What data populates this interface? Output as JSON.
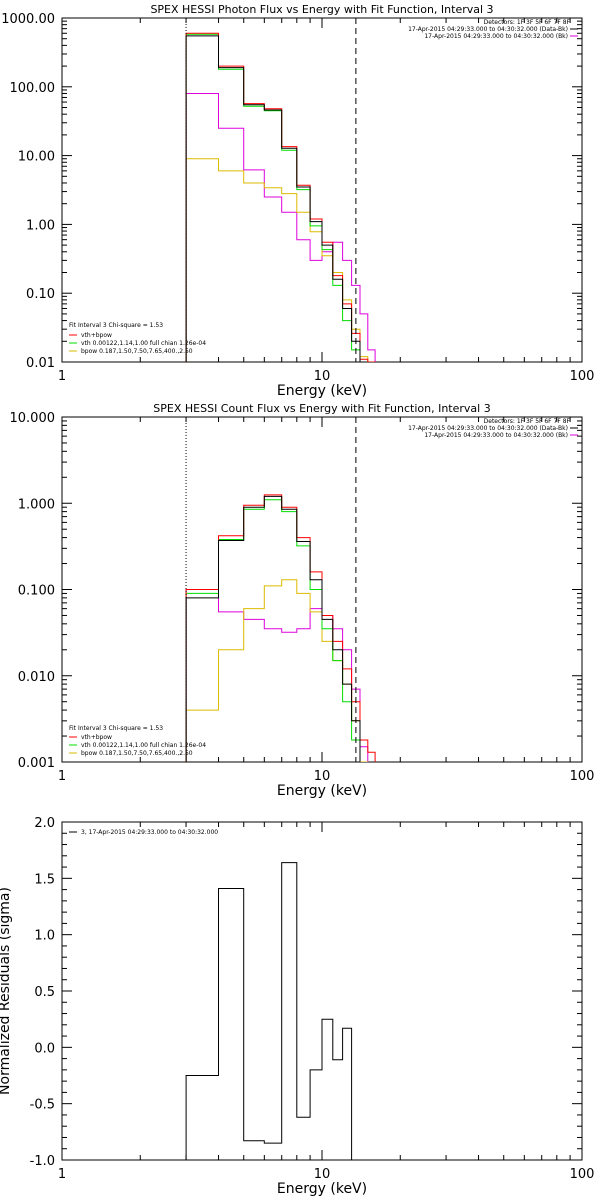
{
  "colors": {
    "total": "#000000",
    "data": "#ff0000",
    "vth": "#00dd00",
    "bpow": "#ddbb00",
    "bkg": "#dd00dd",
    "axis": "#000000"
  },
  "chart_data": [
    {
      "type": "line",
      "step": true,
      "title": "SPEX HESSI Photon Flux vs Energy with Fit Function, Interval 3",
      "xlabel": "Energy (keV)",
      "ylabel": "",
      "xscale": "log",
      "yscale": "log",
      "xlim": [
        1,
        100
      ],
      "ylim": [
        0.01,
        1000
      ],
      "xtick_labels": [
        "1",
        "10",
        "100"
      ],
      "ytick_labels": [
        "0.01",
        "0.10",
        "1.00",
        "10.00",
        "100.00",
        "1000.00"
      ],
      "vlines": [
        {
          "x": 3,
          "style": "dotted",
          "label": ""
        },
        {
          "x": 13.5,
          "style": "dashed",
          "label": ""
        }
      ],
      "header_lines": [
        "Detectors: 1F 3F 5F 6F 7F 8F",
        "17-Apr-2015 04:29:33.000 to 04:30:32.000 (Data-Bk)",
        "17-Apr-2015 04:29:33.000 to 04:30:32.000 (Bk)"
      ],
      "legend": [
        "Fit Interval 3   Chi-square = 1.53",
        "vth+bpow",
        "vth 0.00122,1.14,1.00  full chian 1.26e-04",
        "bpow 0.187,1.50,7.50,7.65,400.,2.50"
      ],
      "x_edges": [
        3,
        4,
        5,
        6,
        7,
        8,
        9,
        10,
        11,
        12,
        13,
        14,
        15,
        16
      ],
      "series": [
        {
          "name": "Data-Bk",
          "color_key": "data",
          "values": [
            600,
            200,
            57,
            48,
            13.5,
            3.7,
            1.2,
            0.55,
            0.18,
            0.07,
            0.026,
            0.011,
            0.01
          ]
        },
        {
          "name": "vth+bpow",
          "color_key": "total",
          "values": [
            550,
            190,
            55,
            46,
            12.8,
            3.5,
            1.1,
            0.5,
            0.16,
            0.06,
            0.02,
            null,
            null
          ]
        },
        {
          "name": "vth",
          "color_key": "vth",
          "values": [
            580,
            180,
            52,
            45,
            12,
            3.2,
            0.95,
            0.43,
            0.13,
            0.04,
            0.015,
            null,
            null
          ]
        },
        {
          "name": "bpow",
          "color_key": "bpow",
          "values": [
            9,
            6,
            4,
            3.4,
            2.8,
            1.5,
            0.78,
            0.35,
            0.2,
            0.08,
            0.03,
            0.012,
            null
          ]
        },
        {
          "name": "Bk",
          "color_key": "bkg",
          "values": [
            80,
            25,
            6.2,
            2.5,
            1.5,
            0.6,
            0.3,
            0.4,
            0.55,
            0.3,
            0.13,
            0.05,
            0.015
          ]
        }
      ]
    },
    {
      "type": "line",
      "step": true,
      "title": "SPEX HESSI Count Flux vs Energy with Fit Function, Interval 3",
      "xlabel": "Energy (keV)",
      "ylabel": "",
      "xscale": "log",
      "yscale": "log",
      "xlim": [
        1,
        100
      ],
      "ylim": [
        0.001,
        10
      ],
      "xtick_labels": [
        "1",
        "10",
        "100"
      ],
      "ytick_labels": [
        "0.001",
        "0.010",
        "0.100",
        "1.000",
        "10.000"
      ],
      "vlines": [
        {
          "x": 3,
          "style": "dotted",
          "label": ""
        },
        {
          "x": 13.5,
          "style": "dashed",
          "label": ""
        }
      ],
      "header_lines": [
        "Detectors: 1F 3F 5F 6F 7F 8F",
        "17-Apr-2015 04:29:33.000 to 04:30:32.000 (Data-Bk)",
        "17-Apr-2015 04:29:33.000 to 04:30:32.000 (Bk)"
      ],
      "legend": [
        "Fit Interval 3   Chi-square = 1.53",
        "vth+bpow",
        "vth 0.00122,1.14,1.00  full chian 1.26e-04",
        "bpow 0.187,1.50,7.50,7.65,400.,2.50"
      ],
      "x_edges": [
        3,
        4,
        5,
        6,
        7,
        8,
        9,
        10,
        11,
        12,
        13,
        14,
        15,
        16
      ],
      "series": [
        {
          "name": "Data-Bk",
          "color_key": "data",
          "values": [
            0.1,
            0.42,
            0.95,
            1.25,
            0.9,
            0.4,
            0.16,
            0.05,
            0.025,
            0.012,
            0.005,
            0.0018,
            0.0013
          ]
        },
        {
          "name": "vth+bpow",
          "color_key": "total",
          "values": [
            0.08,
            0.37,
            0.9,
            1.2,
            0.85,
            0.36,
            0.13,
            0.045,
            0.02,
            0.008,
            0.003,
            null,
            null
          ]
        },
        {
          "name": "vth",
          "color_key": "vth",
          "values": [
            0.09,
            0.38,
            0.85,
            1.1,
            0.8,
            0.32,
            0.1,
            0.035,
            0.015,
            0.005,
            0.0018,
            null,
            null
          ]
        },
        {
          "name": "bpow",
          "color_key": "bpow",
          "values": [
            0.004,
            0.02,
            0.06,
            0.11,
            0.13,
            0.09,
            0.055,
            0.025,
            0.015,
            0.008,
            0.003,
            0.001,
            null
          ]
        },
        {
          "name": "Bk",
          "color_key": "bkg",
          "values": [
            0.1,
            0.055,
            0.045,
            0.035,
            0.032,
            0.035,
            0.06,
            0.05,
            0.035,
            0.02,
            0.007,
            0.0015,
            null
          ]
        }
      ]
    },
    {
      "type": "line",
      "step": true,
      "title": "",
      "xlabel": "Energy (keV)",
      "ylabel": "Normalized Residuals (sigma)",
      "xscale": "log",
      "yscale": "linear",
      "xlim": [
        1,
        100
      ],
      "ylim": [
        -1.0,
        2.0
      ],
      "xtick_labels": [
        "1",
        "10",
        "100"
      ],
      "ytick_labels": [
        "-1.0",
        "-0.5",
        "0.0",
        "0.5",
        "1.0",
        "1.5",
        "2.0"
      ],
      "legend": [
        "3, 17-Apr-2015 04:29:33.000 to 04:30:32.000"
      ],
      "x_edges": [
        3,
        4,
        5,
        6,
        7,
        8,
        9,
        10,
        11,
        12,
        13
      ],
      "series": [
        {
          "name": "3, 17-Apr-2015 04:29:33.000 to 04:30:32.000",
          "color_key": "total",
          "values": [
            -0.25,
            1.41,
            -0.83,
            -0.85,
            1.64,
            -0.62,
            -0.2,
            0.25,
            -0.11,
            0.17
          ]
        }
      ]
    }
  ]
}
